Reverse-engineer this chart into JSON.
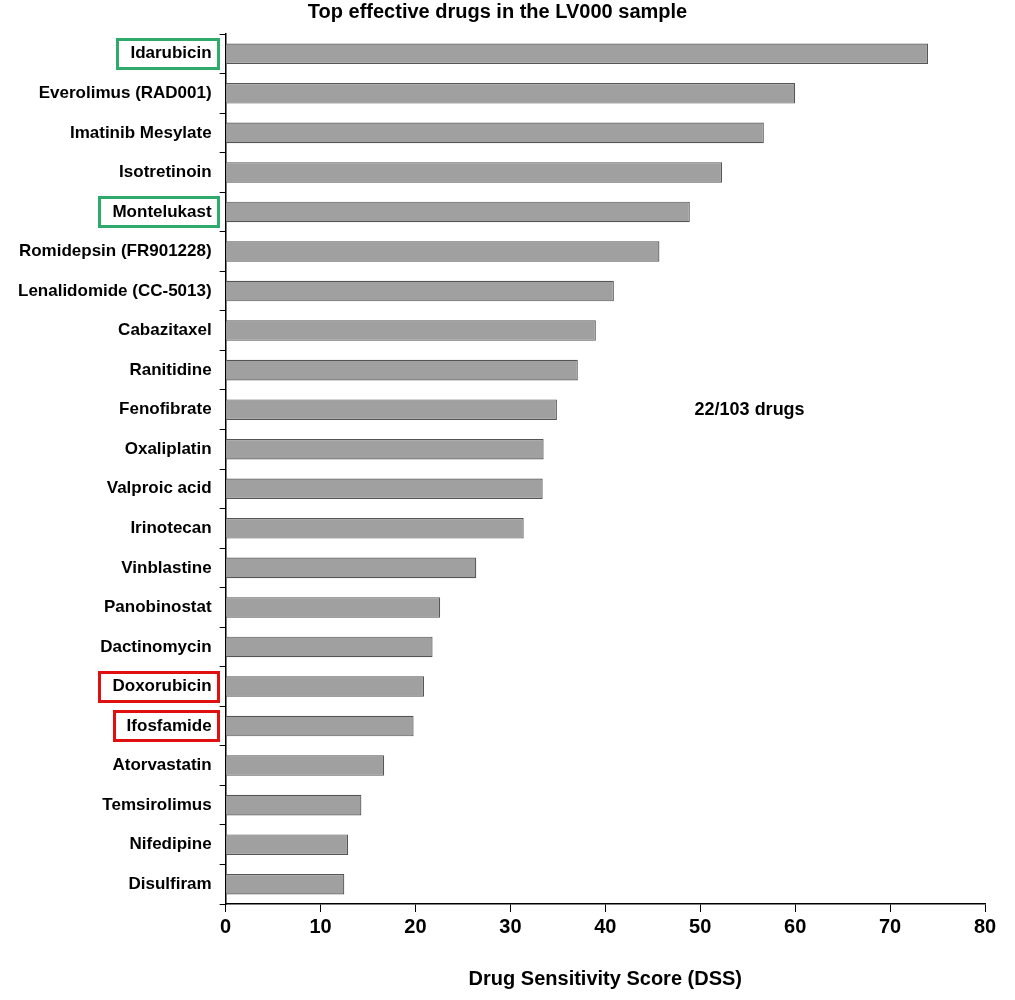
{
  "chart_data": {
    "type": "bar",
    "orientation": "horizontal",
    "title": "Top effective drugs in the LV000 sample",
    "xlabel": "Drug Sensitivity Score (DSS)",
    "categories": [
      "Idarubicin",
      "Everolimus (RAD001)",
      "Imatinib Mesylate",
      "Isotretinoin",
      "Montelukast",
      "Romidepsin (FR901228)",
      "Lenalidomide (CC-5013)",
      "Cabazitaxel",
      "Ranitidine",
      "Fenofibrate",
      "Oxaliplatin",
      "Valproic acid",
      "Irinotecan",
      "Vinblastine",
      "Panobinostat",
      "Dactinomycin",
      "Doxorubicin",
      "Ifosfamide",
      "Atorvastatin",
      "Temsirolimus",
      "Nifedipine",
      "Disulfiram"
    ],
    "values": [
      74.0,
      60.0,
      56.7,
      52.3,
      48.9,
      45.7,
      40.9,
      39.0,
      37.1,
      34.9,
      33.5,
      33.4,
      31.4,
      26.4,
      22.6,
      21.8,
      20.9,
      19.8,
      16.7,
      14.3,
      12.9,
      12.5
    ],
    "color": "#a0a0a0",
    "xlim": [
      0,
      80
    ],
    "xticks": [
      0,
      10,
      20,
      30,
      40,
      50,
      60,
      70,
      80
    ],
    "grid": false,
    "legend": false,
    "annotations": [
      "22/103 drugs"
    ]
  }
}
